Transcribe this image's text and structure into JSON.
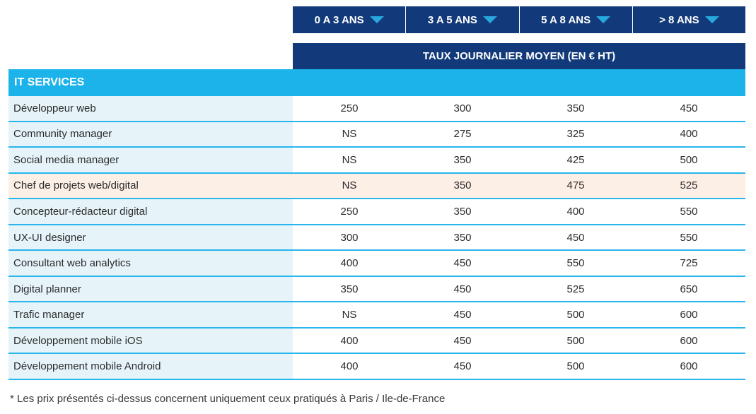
{
  "header": {
    "columns": [
      {
        "label": "0 A 3 ANS"
      },
      {
        "label": "3 A 5 ANS"
      },
      {
        "label": "5 A 8 ANS"
      },
      {
        "label": "> 8 ANS"
      }
    ],
    "taux_label": "TAUX JOURNALIER MOYEN (EN € HT)",
    "arrow_color": "#29a8e0",
    "header_color": "#123a7a"
  },
  "section": {
    "title": "IT SERVICES",
    "color": "#1cb3ea"
  },
  "rows": [
    {
      "label": "Développeur web",
      "values": [
        "250",
        "300",
        "350",
        "450"
      ],
      "highlight": false
    },
    {
      "label": "Community manager",
      "values": [
        "NS",
        "275",
        "325",
        "400"
      ],
      "highlight": false
    },
    {
      "label": "Social media manager",
      "values": [
        "NS",
        "350",
        "425",
        "500"
      ],
      "highlight": false
    },
    {
      "label": "Chef de projets web/digital",
      "values": [
        "NS",
        "350",
        "475",
        "525"
      ],
      "highlight": true
    },
    {
      "label": "Concepteur-rédacteur digital",
      "values": [
        "250",
        "350",
        "400",
        "550"
      ],
      "highlight": false
    },
    {
      "label": "UX-UI designer",
      "values": [
        "300",
        "350",
        "450",
        "550"
      ],
      "highlight": false
    },
    {
      "label": "Consultant web analytics",
      "values": [
        "400",
        "450",
        "550",
        "725"
      ],
      "highlight": false
    },
    {
      "label": "Digital planner",
      "values": [
        "350",
        "450",
        "525",
        "650"
      ],
      "highlight": false
    },
    {
      "label": "Trafic manager",
      "values": [
        "NS",
        "450",
        "500",
        "600"
      ],
      "highlight": false
    },
    {
      "label": "Développement mobile iOS",
      "values": [
        "400",
        "450",
        "500",
        "600"
      ],
      "highlight": false
    },
    {
      "label": "Développement mobile Android",
      "values": [
        "400",
        "450",
        "500",
        "600"
      ],
      "highlight": false
    }
  ],
  "footnote": "* Les prix présentés ci-dessus concernent uniquement ceux pratiqués à Paris / Ile-de-France"
}
